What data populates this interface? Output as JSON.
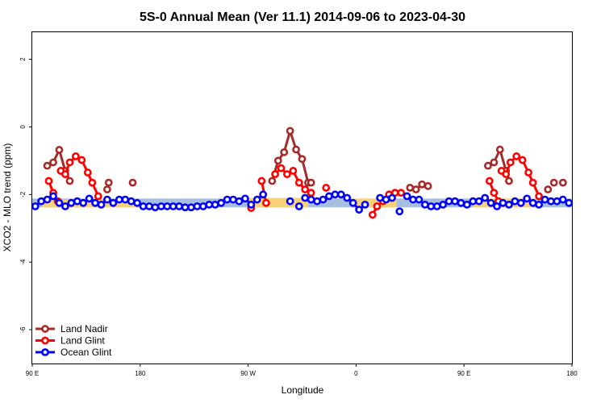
{
  "chart_data": {
    "type": "line",
    "title": "5S-0 Annual Mean (Ver 11.1)   2014-09-06 to 2023-04-30",
    "xlabel": "Longitude",
    "ylabel": "XCO2 - MLO trend (ppm)",
    "xlim": [
      90,
      450
    ],
    "ylim": [
      -7,
      2.8
    ],
    "x_ticks": [
      {
        "value": 90,
        "label": "90 E"
      },
      {
        "value": 162,
        "label": "180"
      },
      {
        "value": 234,
        "label": "90 W"
      },
      {
        "value": 306,
        "label": "0"
      },
      {
        "value": 378,
        "label": "90 E"
      },
      {
        "value": 450,
        "label": "180"
      }
    ],
    "y_ticks": [
      -6,
      -4,
      -2,
      0,
      2
    ],
    "grid": false,
    "legend_position": "bottom-left",
    "band": {
      "blue_segments": [
        [
          90,
          450,
          -2.12,
          -2.38
        ]
      ],
      "yellow_segments": [
        [
          96,
          162,
          -2.15,
          -2.38
        ],
        [
          234,
          274,
          -2.1,
          -2.38
        ],
        [
          303,
          333,
          -2.12,
          -2.38
        ],
        [
          384,
          424,
          -2.12,
          -2.38
        ]
      ]
    },
    "series": [
      {
        "name": "Land Nadir",
        "color": "#a52a2a",
        "segments": [
          [
            [
              100,
              -1.15
            ],
            [
              104,
              -1.05
            ],
            [
              108,
              -0.68
            ],
            [
              112,
              -1.3
            ],
            [
              115,
              -1.6
            ]
          ],
          [
            [
              140,
              -1.85
            ]
          ],
          [
            [
              141,
              -1.65
            ]
          ],
          [
            [
              157,
              -1.65
            ]
          ],
          [
            [
              250,
              -1.6
            ],
            [
              254,
              -1.0
            ],
            [
              258,
              -0.75
            ],
            [
              262,
              -0.12
            ],
            [
              266,
              -0.67
            ],
            [
              270,
              -0.95
            ],
            [
              274,
              -1.65
            ]
          ],
          [
            [
              276,
              -1.65
            ]
          ],
          [
            [
              342,
              -1.8
            ],
            [
              346,
              -1.85
            ],
            [
              350,
              -1.7
            ],
            [
              354,
              -1.75
            ]
          ],
          [
            [
              394,
              -1.15
            ],
            [
              398,
              -1.05
            ],
            [
              402,
              -0.67
            ],
            [
              406,
              -1.3
            ],
            [
              408,
              -1.6
            ]
          ],
          [
            [
              434,
              -1.85
            ]
          ],
          [
            [
              438,
              -1.65
            ]
          ],
          [
            [
              444,
              -1.65
            ]
          ]
        ]
      },
      {
        "name": "Land Glint",
        "color": "#ff0000",
        "segments": [
          [
            [
              101,
              -1.6
            ],
            [
              104,
              -1.95
            ],
            [
              107,
              -2.2
            ]
          ],
          [
            [
              109,
              -1.3
            ],
            [
              112,
              -1.4
            ],
            [
              115,
              -1.05
            ],
            [
              119,
              -0.87
            ],
            [
              123,
              -0.98
            ],
            [
              127,
              -1.35
            ],
            [
              130,
              -1.65
            ],
            [
              134,
              -2.05
            ]
          ],
          [
            [
              236,
              -2.4
            ]
          ],
          [
            [
              243,
              -1.6
            ],
            [
              246,
              -2.25
            ]
          ],
          [
            [
              252,
              -1.4
            ],
            [
              256,
              -1.22
            ],
            [
              260,
              -1.4
            ],
            [
              264,
              -1.3
            ],
            [
              268,
              -1.65
            ],
            [
              272,
              -1.85
            ],
            [
              276,
              -1.95
            ]
          ],
          [
            [
              286,
              -1.8
            ]
          ],
          [
            [
              317,
              -2.6
            ],
            [
              320,
              -2.35
            ],
            [
              324,
              -2.2
            ],
            [
              328,
              -2.0
            ],
            [
              332,
              -1.95
            ],
            [
              336,
              -1.95
            ]
          ],
          [
            [
              395,
              -1.6
            ],
            [
              398,
              -1.95
            ],
            [
              401,
              -2.2
            ]
          ],
          [
            [
              403,
              -1.3
            ],
            [
              406,
              -1.4
            ],
            [
              409,
              -1.05
            ],
            [
              413,
              -0.87
            ],
            [
              417,
              -0.98
            ],
            [
              421,
              -1.35
            ],
            [
              424,
              -1.65
            ],
            [
              428,
              -2.05
            ]
          ]
        ]
      },
      {
        "name": "Ocean Glint",
        "color": "#0000ff",
        "segments": [
          [
            [
              92,
              -2.35
            ],
            [
              96,
              -2.2
            ],
            [
              100,
              -2.15
            ],
            [
              104,
              -2.05
            ],
            [
              108,
              -2.25
            ],
            [
              112,
              -2.35
            ],
            [
              116,
              -2.25
            ],
            [
              120,
              -2.2
            ],
            [
              124,
              -2.25
            ],
            [
              128,
              -2.12
            ],
            [
              132,
              -2.25
            ],
            [
              136,
              -2.3
            ],
            [
              140,
              -2.15
            ],
            [
              144,
              -2.25
            ],
            [
              148,
              -2.15
            ],
            [
              152,
              -2.15
            ],
            [
              156,
              -2.2
            ],
            [
              160,
              -2.25
            ],
            [
              164,
              -2.35
            ],
            [
              168,
              -2.35
            ],
            [
              172,
              -2.38
            ],
            [
              176,
              -2.35
            ],
            [
              180,
              -2.35
            ],
            [
              184,
              -2.35
            ],
            [
              188,
              -2.35
            ],
            [
              192,
              -2.38
            ],
            [
              196,
              -2.38
            ],
            [
              200,
              -2.35
            ],
            [
              204,
              -2.35
            ],
            [
              208,
              -2.3
            ],
            [
              212,
              -2.3
            ],
            [
              216,
              -2.25
            ],
            [
              220,
              -2.15
            ],
            [
              224,
              -2.15
            ],
            [
              228,
              -2.2
            ],
            [
              232,
              -2.12
            ],
            [
              236,
              -2.3
            ],
            [
              240,
              -2.15
            ],
            [
              244,
              -2.0
            ]
          ],
          [
            [
              262,
              -2.2
            ]
          ],
          [
            [
              268,
              -2.35
            ]
          ],
          [
            [
              272,
              -2.1
            ],
            [
              276,
              -2.15
            ],
            [
              280,
              -2.2
            ],
            [
              284,
              -2.15
            ],
            [
              288,
              -2.05
            ],
            [
              292,
              -2.0
            ],
            [
              296,
              -2.0
            ],
            [
              300,
              -2.1
            ],
            [
              304,
              -2.25
            ],
            [
              308,
              -2.45
            ],
            [
              312,
              -2.3
            ]
          ],
          [
            [
              322,
              -2.1
            ],
            [
              326,
              -2.15
            ],
            [
              330,
              -2.1
            ]
          ],
          [
            [
              335,
              -2.5
            ]
          ],
          [
            [
              340,
              -2.05
            ],
            [
              344,
              -2.15
            ],
            [
              348,
              -2.15
            ],
            [
              352,
              -2.3
            ],
            [
              356,
              -2.35
            ],
            [
              360,
              -2.35
            ],
            [
              364,
              -2.3
            ],
            [
              368,
              -2.2
            ],
            [
              372,
              -2.2
            ],
            [
              376,
              -2.25
            ],
            [
              380,
              -2.3
            ],
            [
              384,
              -2.2
            ],
            [
              388,
              -2.2
            ],
            [
              392,
              -2.1
            ],
            [
              396,
              -2.25
            ],
            [
              400,
              -2.35
            ],
            [
              404,
              -2.25
            ],
            [
              408,
              -2.3
            ],
            [
              412,
              -2.2
            ],
            [
              416,
              -2.25
            ],
            [
              420,
              -2.12
            ],
            [
              424,
              -2.25
            ],
            [
              428,
              -2.3
            ],
            [
              432,
              -2.15
            ],
            [
              436,
              -2.2
            ],
            [
              440,
              -2.2
            ],
            [
              444,
              -2.15
            ],
            [
              448,
              -2.25
            ]
          ]
        ]
      }
    ]
  }
}
